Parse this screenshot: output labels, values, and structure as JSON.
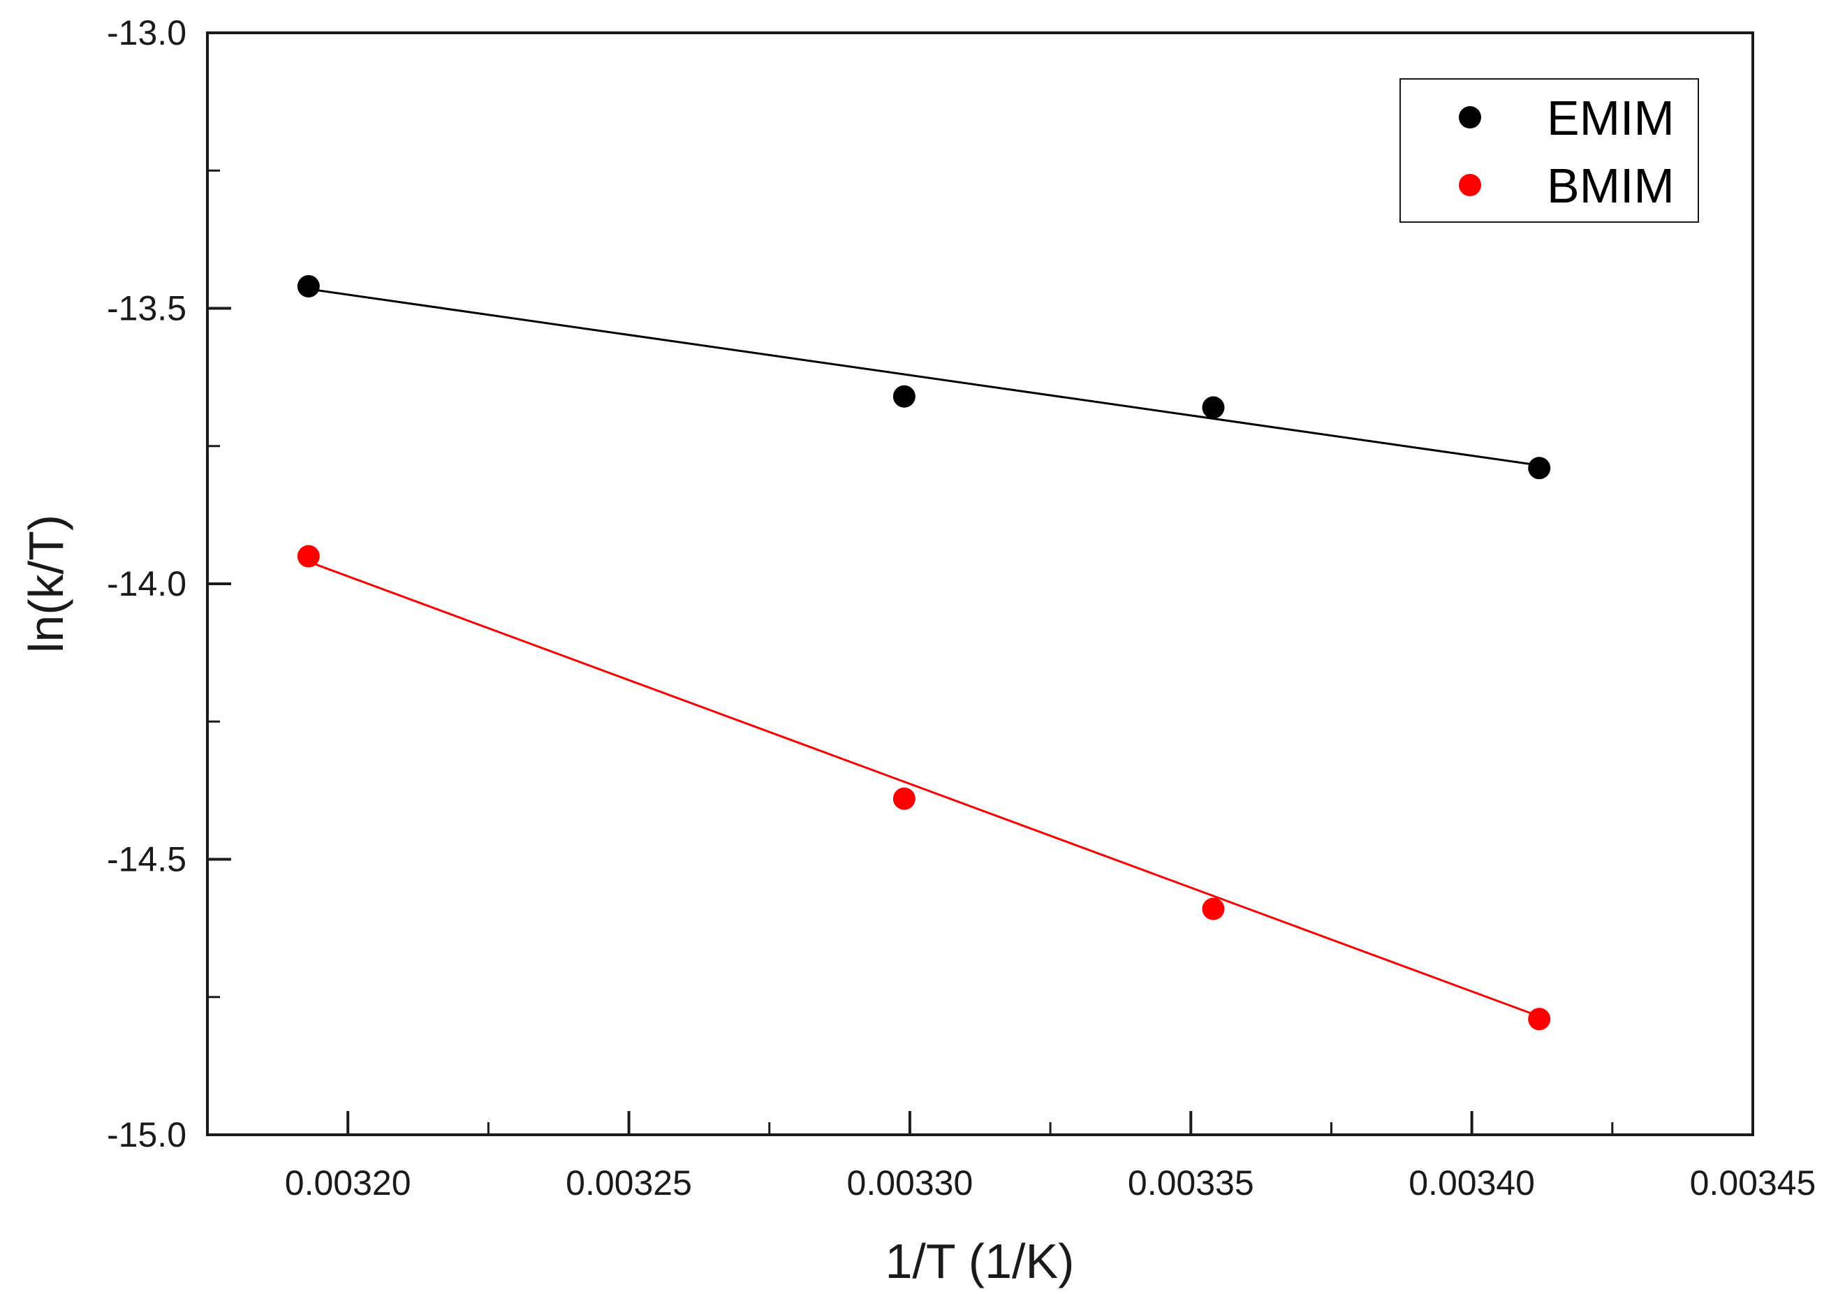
{
  "chart_data": {
    "type": "scatter",
    "title": "",
    "xlabel": "1/T (1/K)",
    "ylabel": "ln(k/T)",
    "xlim": [
      0.003175,
      0.00345
    ],
    "ylim": [
      -15.0,
      -13.0
    ],
    "x_ticks": [
      0.0032,
      0.00325,
      0.0033,
      0.00335,
      0.0034,
      0.00345
    ],
    "x_tick_labels": [
      "0.00320",
      "0.00325",
      "0.00330",
      "0.00335",
      "0.00340",
      "0.00345"
    ],
    "y_ticks": [
      -15.0,
      -14.5,
      -14.0,
      -13.5,
      -13.0
    ],
    "y_tick_labels": [
      "-15.0",
      "-14.5",
      "-14.0",
      "-13.5",
      "-13.0"
    ],
    "grid": false,
    "legend_position": "top-right",
    "series": [
      {
        "name": "EMIM",
        "color": "#000000",
        "x": [
          0.003193,
          0.003299,
          0.003354,
          0.003412
        ],
        "y": [
          -13.46,
          -13.66,
          -13.68,
          -13.79
        ],
        "fit": {
          "x": [
            0.003193,
            0.003412
          ],
          "y": [
            -13.465,
            -13.785
          ]
        }
      },
      {
        "name": "BMIM",
        "color": "#ff0000",
        "x": [
          0.003193,
          0.003299,
          0.003354,
          0.003412
        ],
        "y": [
          -13.95,
          -14.39,
          -14.59,
          -14.79
        ],
        "fit": {
          "x": [
            0.003193,
            0.003412
          ],
          "y": [
            -13.96,
            -14.785
          ]
        }
      }
    ]
  }
}
